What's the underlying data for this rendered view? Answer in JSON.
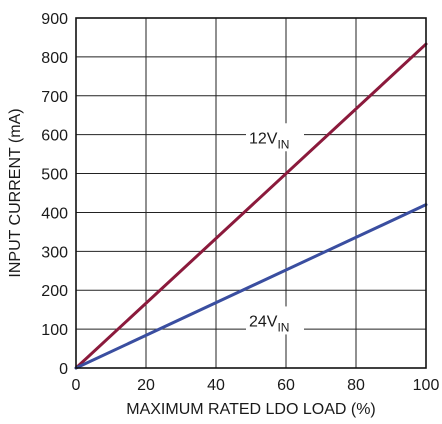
{
  "chart_data": {
    "type": "line",
    "title": "",
    "xlabel": "MAXIMUM RATED LDO LOAD (%)",
    "ylabel": "INPUT CURRENT (mA)",
    "xlim": [
      0,
      100
    ],
    "ylim": [
      0,
      900
    ],
    "xticks": [
      0,
      20,
      40,
      60,
      80,
      100
    ],
    "yticks": [
      0,
      100,
      200,
      300,
      400,
      500,
      600,
      700,
      800,
      900
    ],
    "grid": true,
    "series": [
      {
        "name": "12V",
        "name_subscript": "IN",
        "color": "#8b1a3c",
        "x": [
          0,
          100
        ],
        "y": [
          0,
          833
        ]
      },
      {
        "name": "24V",
        "name_subscript": "IN",
        "color": "#3a4ea0",
        "x": [
          0,
          100
        ],
        "y": [
          0,
          420
        ]
      }
    ]
  }
}
